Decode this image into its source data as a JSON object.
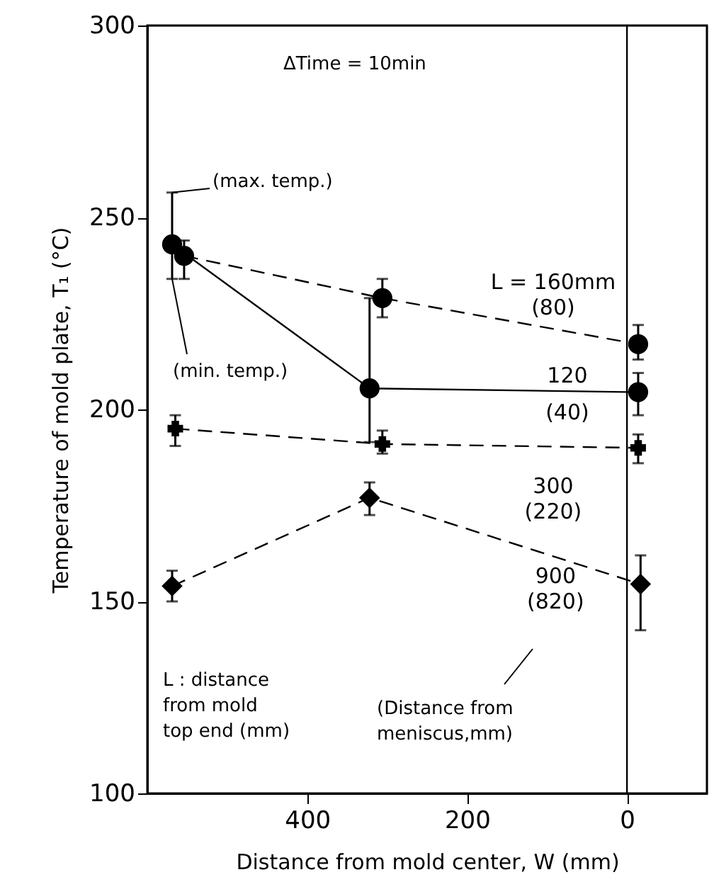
{
  "chart_data": {
    "type": "line",
    "xlabel": "Distance from mold center, W (mm)",
    "ylabel": "Temperature of mold plate, T₁ (°C)",
    "xlim": [
      600,
      -100
    ],
    "xticks": [
      400,
      200,
      0
    ],
    "ylim": [
      100,
      300
    ],
    "yticks": [
      100,
      150,
      200,
      250,
      300
    ],
    "series": [
      {
        "name": "L = 160mm\n(80)",
        "color": "#000000",
        "marker": "circle",
        "line_style": "dashed",
        "x": [
          554,
          306,
          -14
        ],
        "values": [
          240,
          229,
          217
        ],
        "errors": [
          [
            234,
            244
          ],
          [
            224,
            234
          ],
          [
            213,
            222
          ]
        ]
      },
      {
        "name": "120\n(40)",
        "color": "#000000",
        "marker": "circle",
        "line_style": "solid",
        "x": [
          569,
          322,
          -14
        ],
        "values": [
          243,
          205.5,
          204.5
        ],
        "errors": [
          [
            234,
            256.5
          ],
          [
            191.5,
            229
          ],
          [
            198.5,
            209.5
          ]
        ]
      },
      {
        "name": "300\n(220)",
        "color": "#000000",
        "marker": "cross",
        "line_style": "dashed",
        "x": [
          565,
          306,
          -14
        ],
        "values": [
          195,
          191,
          190
        ],
        "errors": [
          [
            190.5,
            198.5
          ],
          [
            188.5,
            194.5
          ],
          [
            186,
            193.5
          ]
        ]
      },
      {
        "name": "900\n(820)",
        "color": "#000000",
        "marker": "diamond",
        "line_style": "dashed",
        "x": [
          569,
          322,
          -17
        ],
        "values": [
          154,
          177,
          154.5
        ],
        "errors": [
          [
            150,
            158
          ],
          [
            172.5,
            181
          ],
          [
            142.5,
            162
          ]
        ]
      }
    ],
    "ref_lines": [
      {
        "axis": "x",
        "value": 0,
        "color": "#000000"
      }
    ],
    "annotations": [
      "ΔTime = 10min",
      {
        "text": "(max. temp.)",
        "x": 569,
        "y": 256.5
      },
      {
        "text": "(min. temp.)",
        "x": 569,
        "y": 234
      },
      "L : distance\nfrom mold\ntop end (mm)",
      "(Distance from\nmeniscus,mm)"
    ]
  }
}
